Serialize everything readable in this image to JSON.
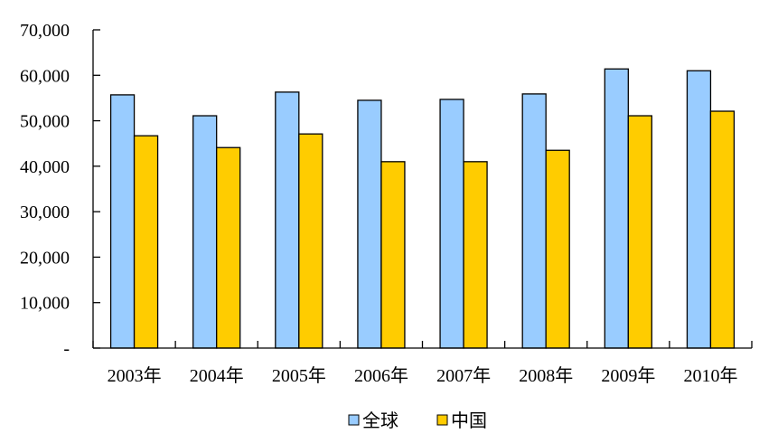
{
  "chart_data": {
    "type": "bar",
    "title": "",
    "xlabel": "",
    "ylabel": "",
    "categories": [
      "2003年",
      "2004年",
      "2005年",
      "2006年",
      "2007年",
      "2008年",
      "2009年",
      "2010年"
    ],
    "series": [
      {
        "name": "全球",
        "color": "#99CCFF",
        "values": [
          55700,
          51100,
          56300,
          54500,
          54700,
          55900,
          61400,
          61000
        ]
      },
      {
        "name": "中国",
        "color": "#FFCC00",
        "values": [
          46700,
          44100,
          47100,
          41000,
          41000,
          43500,
          51100,
          52100
        ]
      }
    ],
    "ylim": [
      0,
      70000
    ],
    "yticks": [
      0,
      10000,
      20000,
      30000,
      40000,
      50000,
      60000,
      70000
    ],
    "ytick_labels": [
      "-",
      "10,000",
      "20,000",
      "30,000",
      "40,000",
      "50,000",
      "60,000",
      "70,000"
    ],
    "grid": false,
    "legend_position": "bottom"
  }
}
